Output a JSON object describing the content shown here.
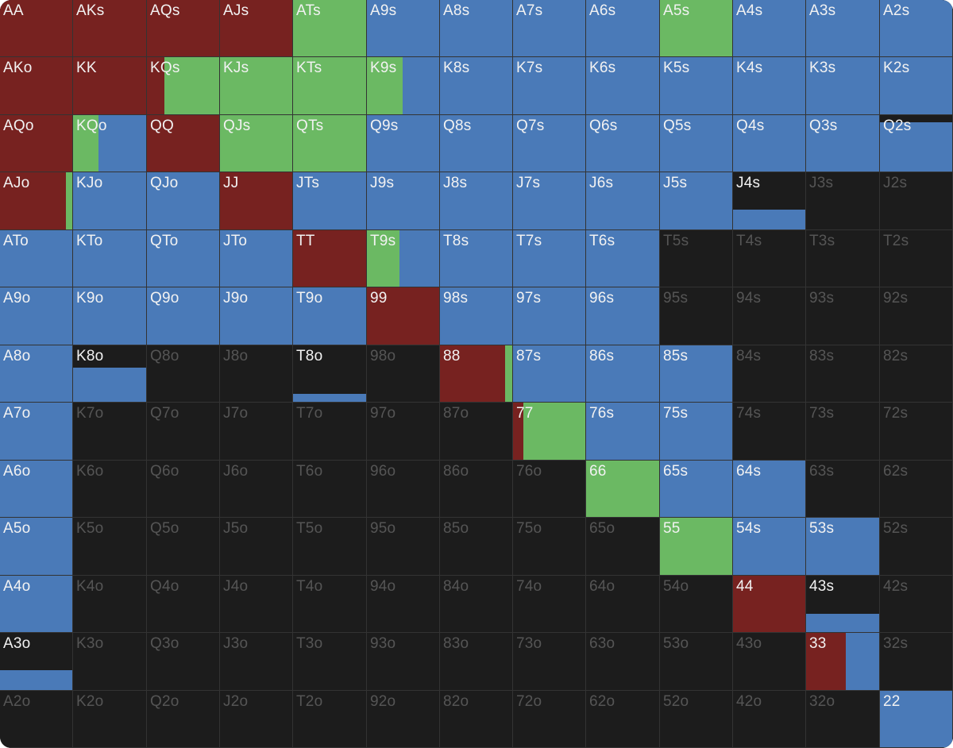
{
  "colors": {
    "raise": "#772220",
    "call": "#6bb963",
    "fold": "#4a7ab8",
    "none": "#1c1c1c",
    "label_active": "#f2f2f2",
    "label_inactive": "#555555"
  },
  "ranks": [
    "A",
    "K",
    "Q",
    "J",
    "T",
    "9",
    "8",
    "7",
    "6",
    "5",
    "4",
    "3",
    "2"
  ],
  "hands": [
    {
      "label": "AA",
      "segs": [
        {
          "c": "raise",
          "w": 1,
          "h": 1
        }
      ]
    },
    {
      "label": "AKs",
      "segs": [
        {
          "c": "raise",
          "w": 1,
          "h": 1
        }
      ]
    },
    {
      "label": "AQs",
      "segs": [
        {
          "c": "raise",
          "w": 1,
          "h": 1
        }
      ]
    },
    {
      "label": "AJs",
      "segs": [
        {
          "c": "raise",
          "w": 1,
          "h": 1
        }
      ]
    },
    {
      "label": "ATs",
      "segs": [
        {
          "c": "call",
          "w": 1,
          "h": 1
        }
      ]
    },
    {
      "label": "A9s",
      "segs": [
        {
          "c": "fold",
          "w": 1,
          "h": 1
        }
      ]
    },
    {
      "label": "A8s",
      "segs": [
        {
          "c": "fold",
          "w": 1,
          "h": 1
        }
      ]
    },
    {
      "label": "A7s",
      "segs": [
        {
          "c": "fold",
          "w": 1,
          "h": 1
        }
      ]
    },
    {
      "label": "A6s",
      "segs": [
        {
          "c": "fold",
          "w": 1,
          "h": 1
        }
      ]
    },
    {
      "label": "A5s",
      "segs": [
        {
          "c": "call",
          "w": 1,
          "h": 1
        }
      ]
    },
    {
      "label": "A4s",
      "segs": [
        {
          "c": "fold",
          "w": 1,
          "h": 1
        }
      ]
    },
    {
      "label": "A3s",
      "segs": [
        {
          "c": "fold",
          "w": 1,
          "h": 1
        }
      ]
    },
    {
      "label": "A2s",
      "segs": [
        {
          "c": "fold",
          "w": 1,
          "h": 1
        }
      ]
    },
    {
      "label": "AKo",
      "segs": [
        {
          "c": "raise",
          "w": 1,
          "h": 1
        }
      ]
    },
    {
      "label": "KK",
      "segs": [
        {
          "c": "raise",
          "w": 1,
          "h": 1
        }
      ]
    },
    {
      "label": "KQs",
      "segs": [
        {
          "c": "raise",
          "w": 0.24,
          "h": 1
        },
        {
          "c": "call",
          "w": 0.76,
          "h": 1
        }
      ]
    },
    {
      "label": "KJs",
      "segs": [
        {
          "c": "call",
          "w": 1,
          "h": 1
        }
      ]
    },
    {
      "label": "KTs",
      "segs": [
        {
          "c": "call",
          "w": 1,
          "h": 1
        }
      ]
    },
    {
      "label": "K9s",
      "segs": [
        {
          "c": "call",
          "w": 0.49,
          "h": 1
        },
        {
          "c": "fold",
          "w": 0.51,
          "h": 1
        }
      ]
    },
    {
      "label": "K8s",
      "segs": [
        {
          "c": "fold",
          "w": 1,
          "h": 1
        }
      ]
    },
    {
      "label": "K7s",
      "segs": [
        {
          "c": "fold",
          "w": 1,
          "h": 1
        }
      ]
    },
    {
      "label": "K6s",
      "segs": [
        {
          "c": "fold",
          "w": 1,
          "h": 1
        }
      ]
    },
    {
      "label": "K5s",
      "segs": [
        {
          "c": "fold",
          "w": 1,
          "h": 1
        }
      ]
    },
    {
      "label": "K4s",
      "segs": [
        {
          "c": "fold",
          "w": 1,
          "h": 1
        }
      ]
    },
    {
      "label": "K3s",
      "segs": [
        {
          "c": "fold",
          "w": 1,
          "h": 1
        }
      ]
    },
    {
      "label": "K2s",
      "segs": [
        {
          "c": "fold",
          "w": 1,
          "h": 1
        }
      ]
    },
    {
      "label": "AQo",
      "segs": [
        {
          "c": "raise",
          "w": 1,
          "h": 1
        }
      ]
    },
    {
      "label": "KQo",
      "segs": [
        {
          "c": "call",
          "w": 0.35,
          "h": 1
        },
        {
          "c": "fold",
          "w": 0.65,
          "h": 1
        }
      ]
    },
    {
      "label": "QQ",
      "segs": [
        {
          "c": "raise",
          "w": 1,
          "h": 1
        }
      ]
    },
    {
      "label": "QJs",
      "segs": [
        {
          "c": "call",
          "w": 1,
          "h": 1
        }
      ]
    },
    {
      "label": "QTs",
      "segs": [
        {
          "c": "call",
          "w": 1,
          "h": 1
        }
      ]
    },
    {
      "label": "Q9s",
      "segs": [
        {
          "c": "fold",
          "w": 1,
          "h": 1
        }
      ]
    },
    {
      "label": "Q8s",
      "segs": [
        {
          "c": "fold",
          "w": 1,
          "h": 1
        }
      ]
    },
    {
      "label": "Q7s",
      "segs": [
        {
          "c": "fold",
          "w": 1,
          "h": 1
        }
      ]
    },
    {
      "label": "Q6s",
      "segs": [
        {
          "c": "fold",
          "w": 1,
          "h": 1
        }
      ]
    },
    {
      "label": "Q5s",
      "segs": [
        {
          "c": "fold",
          "w": 1,
          "h": 1
        }
      ]
    },
    {
      "label": "Q4s",
      "segs": [
        {
          "c": "fold",
          "w": 1,
          "h": 1
        }
      ]
    },
    {
      "label": "Q3s",
      "segs": [
        {
          "c": "fold",
          "w": 1,
          "h": 1
        }
      ]
    },
    {
      "label": "Q2s",
      "segs": [
        {
          "c": "fold",
          "w": 1,
          "h": 0.87
        }
      ]
    },
    {
      "label": "AJo",
      "segs": [
        {
          "c": "raise",
          "w": 0.91,
          "h": 1
        },
        {
          "c": "call",
          "w": 0.09,
          "h": 1
        }
      ]
    },
    {
      "label": "KJo",
      "segs": [
        {
          "c": "fold",
          "w": 1,
          "h": 1
        }
      ]
    },
    {
      "label": "QJo",
      "segs": [
        {
          "c": "fold",
          "w": 1,
          "h": 1
        }
      ]
    },
    {
      "label": "JJ",
      "segs": [
        {
          "c": "raise",
          "w": 1,
          "h": 1
        }
      ]
    },
    {
      "label": "JTs",
      "segs": [
        {
          "c": "fold",
          "w": 1,
          "h": 1
        }
      ]
    },
    {
      "label": "J9s",
      "segs": [
        {
          "c": "fold",
          "w": 1,
          "h": 1
        }
      ]
    },
    {
      "label": "J8s",
      "segs": [
        {
          "c": "fold",
          "w": 1,
          "h": 1
        }
      ]
    },
    {
      "label": "J7s",
      "segs": [
        {
          "c": "fold",
          "w": 1,
          "h": 1
        }
      ]
    },
    {
      "label": "J6s",
      "segs": [
        {
          "c": "fold",
          "w": 1,
          "h": 1
        }
      ]
    },
    {
      "label": "J5s",
      "segs": [
        {
          "c": "fold",
          "w": 1,
          "h": 1
        }
      ]
    },
    {
      "label": "J4s",
      "segs": [
        {
          "c": "fold",
          "w": 1,
          "h": 0.35
        }
      ]
    },
    {
      "label": "J3s",
      "segs": []
    },
    {
      "label": "J2s",
      "segs": []
    },
    {
      "label": "ATo",
      "segs": [
        {
          "c": "fold",
          "w": 1,
          "h": 1
        }
      ]
    },
    {
      "label": "KTo",
      "segs": [
        {
          "c": "fold",
          "w": 1,
          "h": 1
        }
      ]
    },
    {
      "label": "QTo",
      "segs": [
        {
          "c": "fold",
          "w": 1,
          "h": 1
        }
      ]
    },
    {
      "label": "JTo",
      "segs": [
        {
          "c": "fold",
          "w": 1,
          "h": 1
        }
      ]
    },
    {
      "label": "TT",
      "segs": [
        {
          "c": "raise",
          "w": 1,
          "h": 1
        }
      ]
    },
    {
      "label": "T9s",
      "segs": [
        {
          "c": "call",
          "w": 0.45,
          "h": 1
        },
        {
          "c": "fold",
          "w": 0.55,
          "h": 1
        }
      ]
    },
    {
      "label": "T8s",
      "segs": [
        {
          "c": "fold",
          "w": 1,
          "h": 1
        }
      ]
    },
    {
      "label": "T7s",
      "segs": [
        {
          "c": "fold",
          "w": 1,
          "h": 1
        }
      ]
    },
    {
      "label": "T6s",
      "segs": [
        {
          "c": "fold",
          "w": 1,
          "h": 1
        }
      ]
    },
    {
      "label": "T5s",
      "segs": []
    },
    {
      "label": "T4s",
      "segs": []
    },
    {
      "label": "T3s",
      "segs": []
    },
    {
      "label": "T2s",
      "segs": []
    },
    {
      "label": "A9o",
      "segs": [
        {
          "c": "fold",
          "w": 1,
          "h": 1
        }
      ]
    },
    {
      "label": "K9o",
      "segs": [
        {
          "c": "fold",
          "w": 1,
          "h": 1
        }
      ]
    },
    {
      "label": "Q9o",
      "segs": [
        {
          "c": "fold",
          "w": 1,
          "h": 1
        }
      ]
    },
    {
      "label": "J9o",
      "segs": [
        {
          "c": "fold",
          "w": 1,
          "h": 1
        }
      ]
    },
    {
      "label": "T9o",
      "segs": [
        {
          "c": "fold",
          "w": 1,
          "h": 1
        }
      ]
    },
    {
      "label": "99",
      "segs": [
        {
          "c": "raise",
          "w": 1,
          "h": 1
        }
      ]
    },
    {
      "label": "98s",
      "segs": [
        {
          "c": "fold",
          "w": 1,
          "h": 1
        }
      ]
    },
    {
      "label": "97s",
      "segs": [
        {
          "c": "fold",
          "w": 1,
          "h": 1
        }
      ]
    },
    {
      "label": "96s",
      "segs": [
        {
          "c": "fold",
          "w": 1,
          "h": 1
        }
      ]
    },
    {
      "label": "95s",
      "segs": []
    },
    {
      "label": "94s",
      "segs": []
    },
    {
      "label": "93s",
      "segs": []
    },
    {
      "label": "92s",
      "segs": []
    },
    {
      "label": "A8o",
      "segs": [
        {
          "c": "fold",
          "w": 1,
          "h": 1
        }
      ]
    },
    {
      "label": "K8o",
      "segs": [
        {
          "c": "fold",
          "w": 1,
          "h": 0.6
        }
      ]
    },
    {
      "label": "Q8o",
      "segs": []
    },
    {
      "label": "J8o",
      "segs": []
    },
    {
      "label": "T8o",
      "segs": [
        {
          "c": "fold",
          "w": 1,
          "h": 0.14
        }
      ]
    },
    {
      "label": "98o",
      "segs": []
    },
    {
      "label": "88",
      "segs": [
        {
          "c": "raise",
          "w": 0.9,
          "h": 1
        },
        {
          "c": "call",
          "w": 0.1,
          "h": 1
        }
      ]
    },
    {
      "label": "87s",
      "segs": [
        {
          "c": "fold",
          "w": 1,
          "h": 1
        }
      ]
    },
    {
      "label": "86s",
      "segs": [
        {
          "c": "fold",
          "w": 1,
          "h": 1
        }
      ]
    },
    {
      "label": "85s",
      "segs": [
        {
          "c": "fold",
          "w": 1,
          "h": 1
        }
      ]
    },
    {
      "label": "84s",
      "segs": []
    },
    {
      "label": "83s",
      "segs": []
    },
    {
      "label": "82s",
      "segs": []
    },
    {
      "label": "A7o",
      "segs": [
        {
          "c": "fold",
          "w": 1,
          "h": 1
        }
      ]
    },
    {
      "label": "K7o",
      "segs": []
    },
    {
      "label": "Q7o",
      "segs": []
    },
    {
      "label": "J7o",
      "segs": []
    },
    {
      "label": "T7o",
      "segs": []
    },
    {
      "label": "97o",
      "segs": []
    },
    {
      "label": "87o",
      "segs": []
    },
    {
      "label": "77",
      "segs": [
        {
          "c": "raise",
          "w": 0.14,
          "h": 1
        },
        {
          "c": "call",
          "w": 0.86,
          "h": 1
        }
      ]
    },
    {
      "label": "76s",
      "segs": [
        {
          "c": "fold",
          "w": 1,
          "h": 1
        }
      ]
    },
    {
      "label": "75s",
      "segs": [
        {
          "c": "fold",
          "w": 1,
          "h": 1
        }
      ]
    },
    {
      "label": "74s",
      "segs": []
    },
    {
      "label": "73s",
      "segs": []
    },
    {
      "label": "72s",
      "segs": []
    },
    {
      "label": "A6o",
      "segs": [
        {
          "c": "fold",
          "w": 1,
          "h": 1
        }
      ]
    },
    {
      "label": "K6o",
      "segs": []
    },
    {
      "label": "Q6o",
      "segs": []
    },
    {
      "label": "J6o",
      "segs": []
    },
    {
      "label": "T6o",
      "segs": []
    },
    {
      "label": "96o",
      "segs": []
    },
    {
      "label": "86o",
      "segs": []
    },
    {
      "label": "76o",
      "segs": []
    },
    {
      "label": "66",
      "segs": [
        {
          "c": "call",
          "w": 1,
          "h": 1
        }
      ]
    },
    {
      "label": "65s",
      "segs": [
        {
          "c": "fold",
          "w": 1,
          "h": 1
        }
      ]
    },
    {
      "label": "64s",
      "segs": [
        {
          "c": "fold",
          "w": 1,
          "h": 1
        }
      ]
    },
    {
      "label": "63s",
      "segs": []
    },
    {
      "label": "62s",
      "segs": []
    },
    {
      "label": "A5o",
      "segs": [
        {
          "c": "fold",
          "w": 1,
          "h": 1
        }
      ]
    },
    {
      "label": "K5o",
      "segs": []
    },
    {
      "label": "Q5o",
      "segs": []
    },
    {
      "label": "J5o",
      "segs": []
    },
    {
      "label": "T5o",
      "segs": []
    },
    {
      "label": "95o",
      "segs": []
    },
    {
      "label": "85o",
      "segs": []
    },
    {
      "label": "75o",
      "segs": []
    },
    {
      "label": "65o",
      "segs": []
    },
    {
      "label": "55",
      "segs": [
        {
          "c": "call",
          "w": 1,
          "h": 1
        }
      ]
    },
    {
      "label": "54s",
      "segs": [
        {
          "c": "fold",
          "w": 1,
          "h": 1
        }
      ]
    },
    {
      "label": "53s",
      "segs": [
        {
          "c": "fold",
          "w": 1,
          "h": 1
        }
      ]
    },
    {
      "label": "52s",
      "segs": []
    },
    {
      "label": "A4o",
      "segs": [
        {
          "c": "fold",
          "w": 1,
          "h": 1
        }
      ]
    },
    {
      "label": "K4o",
      "segs": []
    },
    {
      "label": "Q4o",
      "segs": []
    },
    {
      "label": "J4o",
      "segs": []
    },
    {
      "label": "T4o",
      "segs": []
    },
    {
      "label": "94o",
      "segs": []
    },
    {
      "label": "84o",
      "segs": []
    },
    {
      "label": "74o",
      "segs": []
    },
    {
      "label": "64o",
      "segs": []
    },
    {
      "label": "54o",
      "segs": []
    },
    {
      "label": "44",
      "segs": [
        {
          "c": "raise",
          "w": 1,
          "h": 1
        }
      ]
    },
    {
      "label": "43s",
      "segs": [
        {
          "c": "fold",
          "w": 1,
          "h": 0.33
        }
      ]
    },
    {
      "label": "42s",
      "segs": []
    },
    {
      "label": "A3o",
      "segs": [
        {
          "c": "fold",
          "w": 1,
          "h": 0.35
        }
      ]
    },
    {
      "label": "K3o",
      "segs": []
    },
    {
      "label": "Q3o",
      "segs": []
    },
    {
      "label": "J3o",
      "segs": []
    },
    {
      "label": "T3o",
      "segs": []
    },
    {
      "label": "93o",
      "segs": []
    },
    {
      "label": "83o",
      "segs": []
    },
    {
      "label": "73o",
      "segs": []
    },
    {
      "label": "63o",
      "segs": []
    },
    {
      "label": "53o",
      "segs": []
    },
    {
      "label": "43o",
      "segs": []
    },
    {
      "label": "33",
      "segs": [
        {
          "c": "raise",
          "w": 0.54,
          "h": 1
        },
        {
          "c": "fold",
          "w": 0.46,
          "h": 1
        }
      ]
    },
    {
      "label": "32s",
      "segs": []
    },
    {
      "label": "A2o",
      "segs": []
    },
    {
      "label": "K2o",
      "segs": []
    },
    {
      "label": "Q2o",
      "segs": []
    },
    {
      "label": "J2o",
      "segs": []
    },
    {
      "label": "T2o",
      "segs": []
    },
    {
      "label": "92o",
      "segs": []
    },
    {
      "label": "82o",
      "segs": []
    },
    {
      "label": "72o",
      "segs": []
    },
    {
      "label": "62o",
      "segs": []
    },
    {
      "label": "52o",
      "segs": []
    },
    {
      "label": "42o",
      "segs": []
    },
    {
      "label": "32o",
      "segs": []
    },
    {
      "label": "22",
      "segs": [
        {
          "c": "fold",
          "w": 1,
          "h": 1
        }
      ]
    }
  ]
}
